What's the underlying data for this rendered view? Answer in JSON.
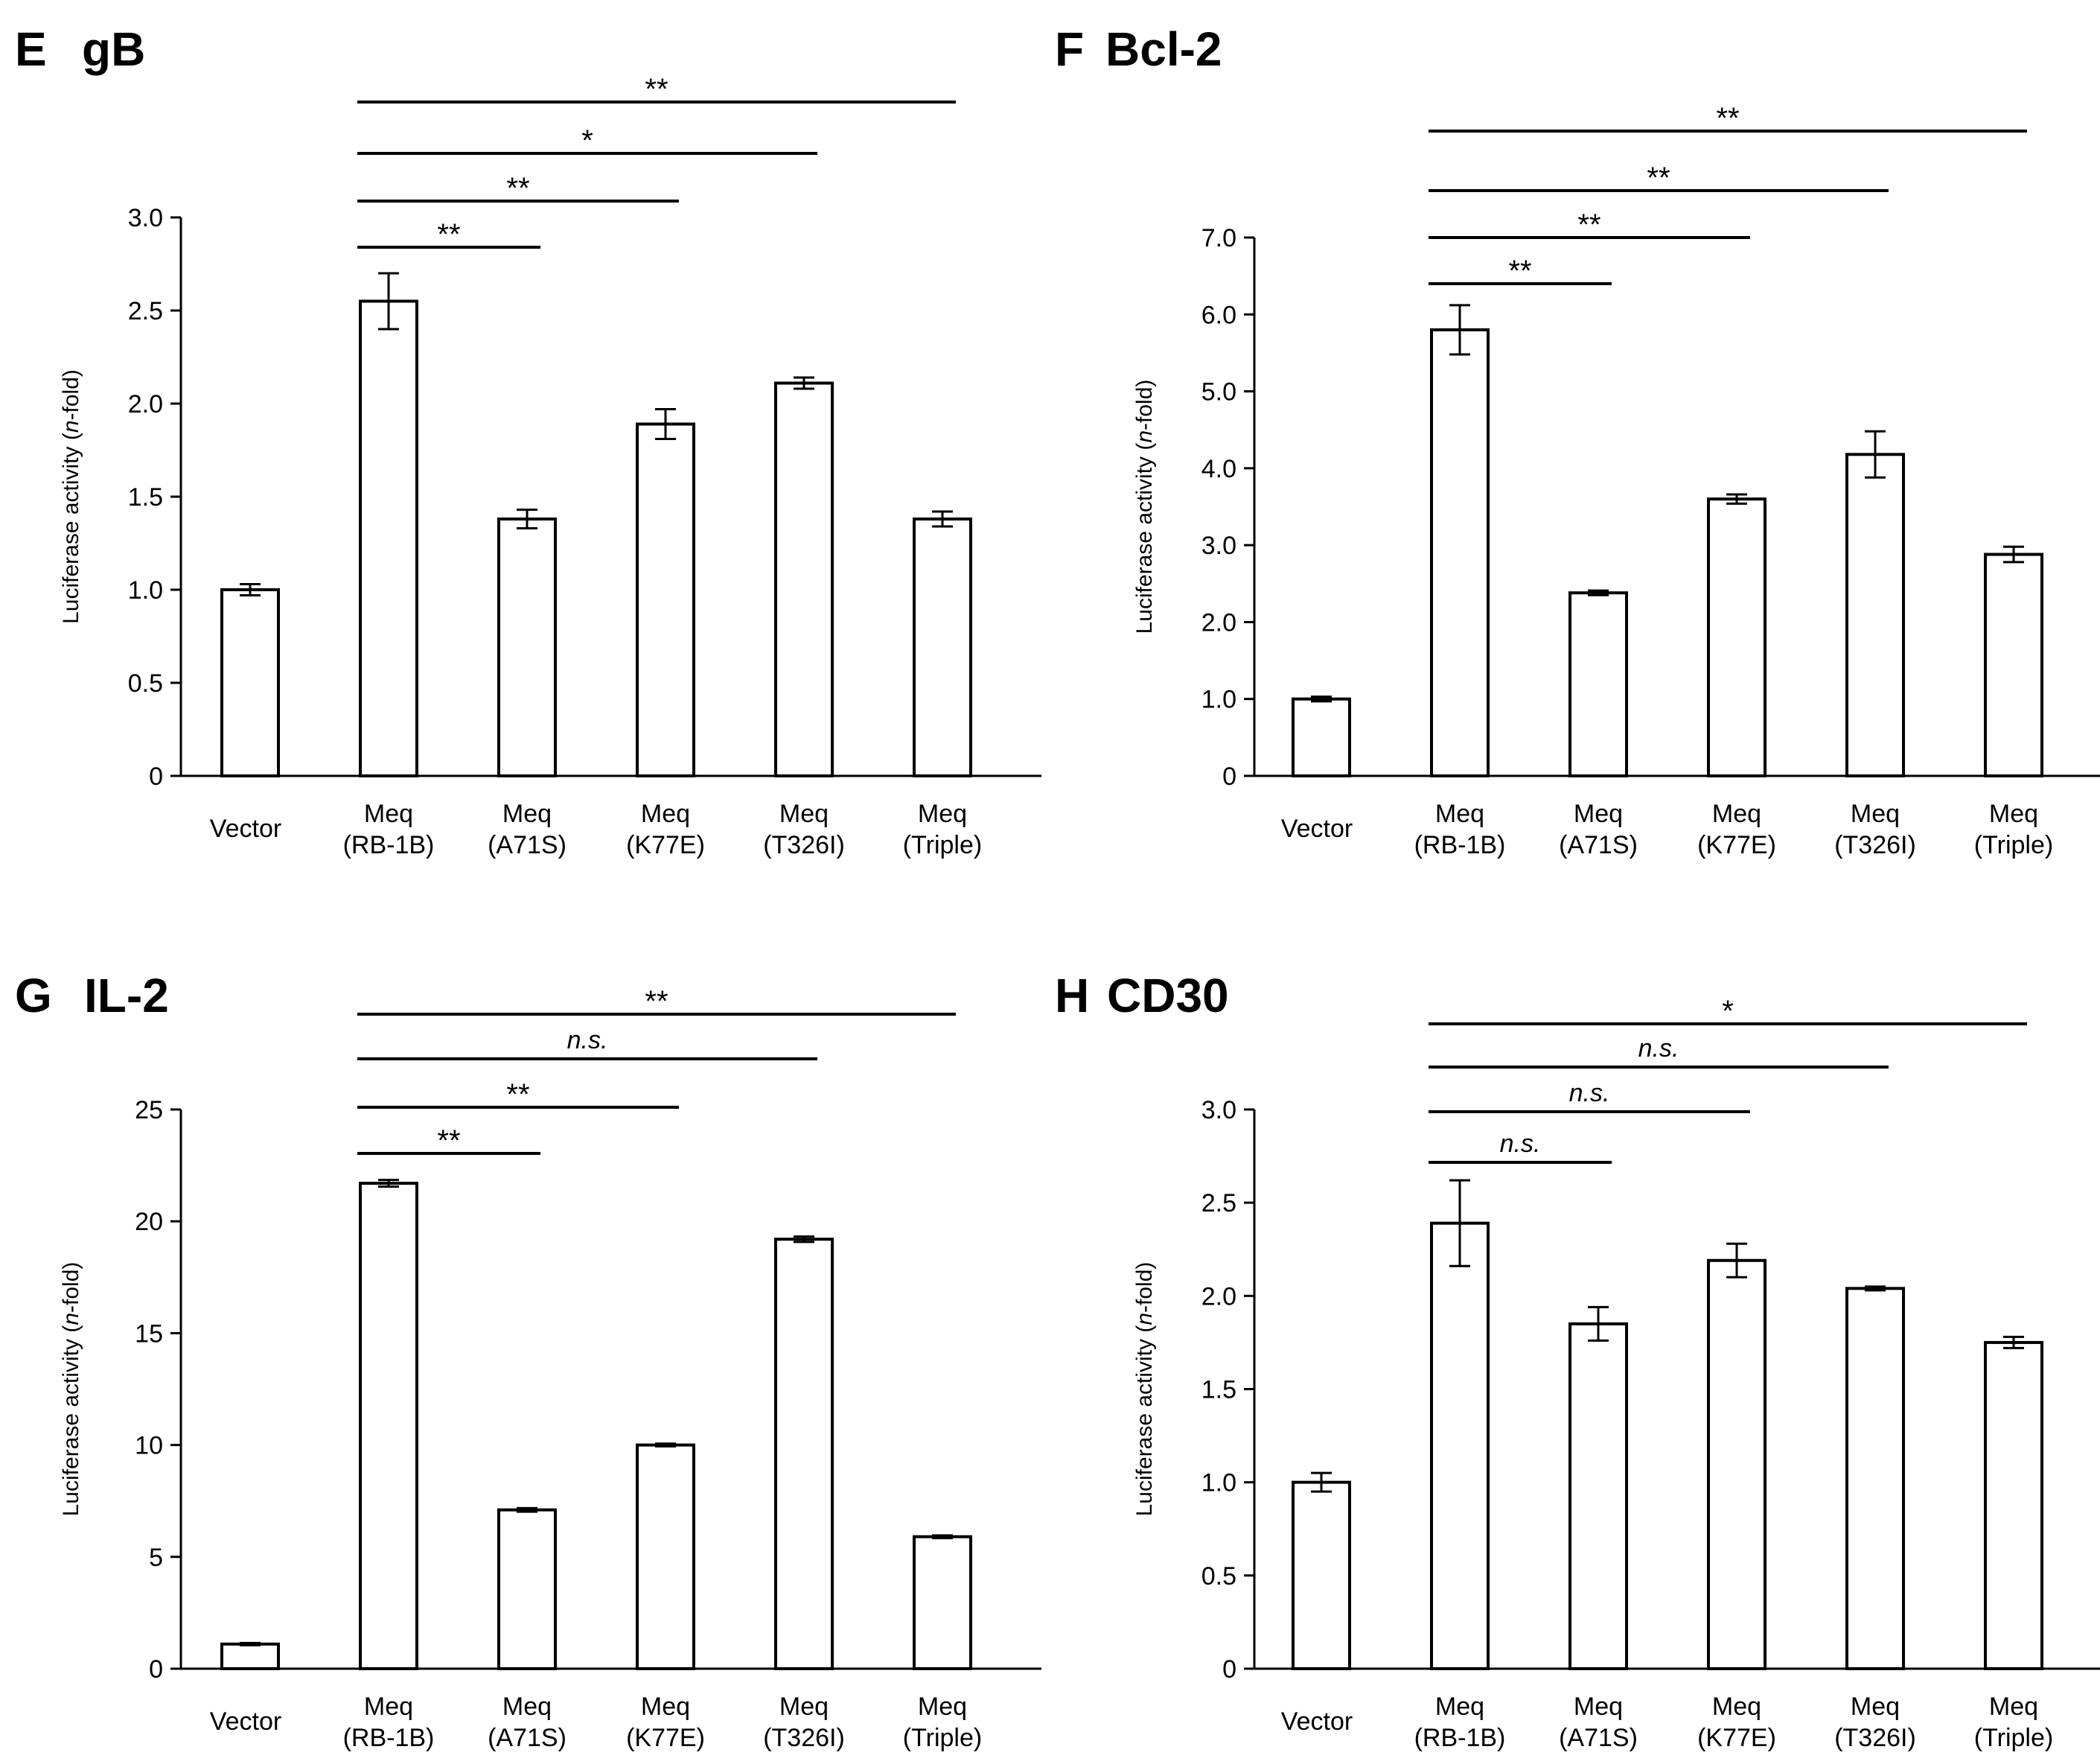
{
  "chart_data": [
    {
      "panel": "E",
      "title": "gB",
      "type": "bar",
      "ylabel_pre": "Luciferase activity (",
      "ylabel_italic": "n",
      "ylabel_post": "-fold)",
      "ylim": [
        0,
        3.0
      ],
      "yticks": [
        "0",
        "0.5",
        "1.0",
        "1.5",
        "2.0",
        "2.5",
        "3.0"
      ],
      "categories": [
        [
          "Vector"
        ],
        [
          "Meq",
          "(RB-1B)"
        ],
        [
          "Meq",
          "(A71S)"
        ],
        [
          "Meq",
          "(K77E)"
        ],
        [
          "Meq",
          "(T326I)"
        ],
        [
          "Meq",
          "(Triple)"
        ]
      ],
      "values": [
        1.0,
        2.55,
        1.38,
        1.89,
        2.11,
        1.38
      ],
      "errors": [
        0.03,
        0.15,
        0.05,
        0.08,
        0.03,
        0.04
      ],
      "significance": [
        {
          "from": 1,
          "to": 2,
          "label": "**"
        },
        {
          "from": 1,
          "to": 3,
          "label": "**"
        },
        {
          "from": 1,
          "to": 4,
          "label": "*"
        },
        {
          "from": 1,
          "to": 5,
          "label": "**"
        }
      ]
    },
    {
      "panel": "F",
      "title": "Bcl-2",
      "type": "bar",
      "ylabel_pre": "Luciferase activity (",
      "ylabel_italic": "n",
      "ylabel_post": "-fold)",
      "ylim": [
        0,
        7.0
      ],
      "yticks": [
        "0",
        "1.0",
        "2.0",
        "3.0",
        "4.0",
        "5.0",
        "6.0",
        "7.0"
      ],
      "categories": [
        [
          "Vector"
        ],
        [
          "Meq",
          "(RB-1B)"
        ],
        [
          "Meq",
          "(A71S)"
        ],
        [
          "Meq",
          "(K77E)"
        ],
        [
          "Meq",
          "(T326I)"
        ],
        [
          "Meq",
          "(Triple)"
        ]
      ],
      "values": [
        1.0,
        5.8,
        2.38,
        3.6,
        4.18,
        2.88
      ],
      "errors": [
        0.03,
        0.32,
        0.03,
        0.06,
        0.3,
        0.1
      ],
      "significance": [
        {
          "from": 1,
          "to": 2,
          "label": "**"
        },
        {
          "from": 1,
          "to": 3,
          "label": "**"
        },
        {
          "from": 1,
          "to": 4,
          "label": "**"
        },
        {
          "from": 1,
          "to": 5,
          "label": "**"
        }
      ]
    },
    {
      "panel": "G",
      "title": "IL-2",
      "type": "bar",
      "ylabel_pre": "Luciferase activity (",
      "ylabel_italic": "n",
      "ylabel_post": "-fold)",
      "ylim": [
        0,
        25
      ],
      "yticks": [
        "0",
        "5",
        "10",
        "15",
        "20",
        "25"
      ],
      "categories": [
        [
          "Vector"
        ],
        [
          "Meq",
          "(RB-1B)"
        ],
        [
          "Meq",
          "(A71S)"
        ],
        [
          "Meq",
          "(K77E)"
        ],
        [
          "Meq",
          "(T326I)"
        ],
        [
          "Meq",
          "(Triple)"
        ]
      ],
      "values": [
        1.1,
        21.7,
        7.1,
        10.0,
        19.2,
        5.9
      ],
      "errors": [
        0.05,
        0.15,
        0.08,
        0.06,
        0.12,
        0.06
      ],
      "significance": [
        {
          "from": 1,
          "to": 2,
          "label": "**"
        },
        {
          "from": 1,
          "to": 3,
          "label": "**"
        },
        {
          "from": 1,
          "to": 4,
          "label": "n.s."
        },
        {
          "from": 1,
          "to": 5,
          "label": "**"
        }
      ]
    },
    {
      "panel": "H",
      "title": "CD30",
      "type": "bar",
      "ylabel_pre": "Luciferase activity (",
      "ylabel_italic": "n",
      "ylabel_post": "-fold)",
      "ylim": [
        0,
        3.0
      ],
      "yticks": [
        "0",
        "0.5",
        "1.0",
        "1.5",
        "2.0",
        "2.5",
        "3.0"
      ],
      "categories": [
        [
          "Vector"
        ],
        [
          "Meq",
          "(RB-1B)"
        ],
        [
          "Meq",
          "(A71S)"
        ],
        [
          "Meq",
          "(K77E)"
        ],
        [
          "Meq",
          "(T326I)"
        ],
        [
          "Meq",
          "(Triple)"
        ]
      ],
      "values": [
        1.0,
        2.39,
        1.85,
        2.19,
        2.04,
        1.75
      ],
      "errors": [
        0.05,
        0.23,
        0.09,
        0.09,
        0.01,
        0.03
      ],
      "significance": [
        {
          "from": 1,
          "to": 2,
          "label": "n.s."
        },
        {
          "from": 1,
          "to": 3,
          "label": "n.s."
        },
        {
          "from": 1,
          "to": 4,
          "label": "n.s."
        },
        {
          "from": 1,
          "to": 5,
          "label": "*"
        }
      ]
    }
  ]
}
